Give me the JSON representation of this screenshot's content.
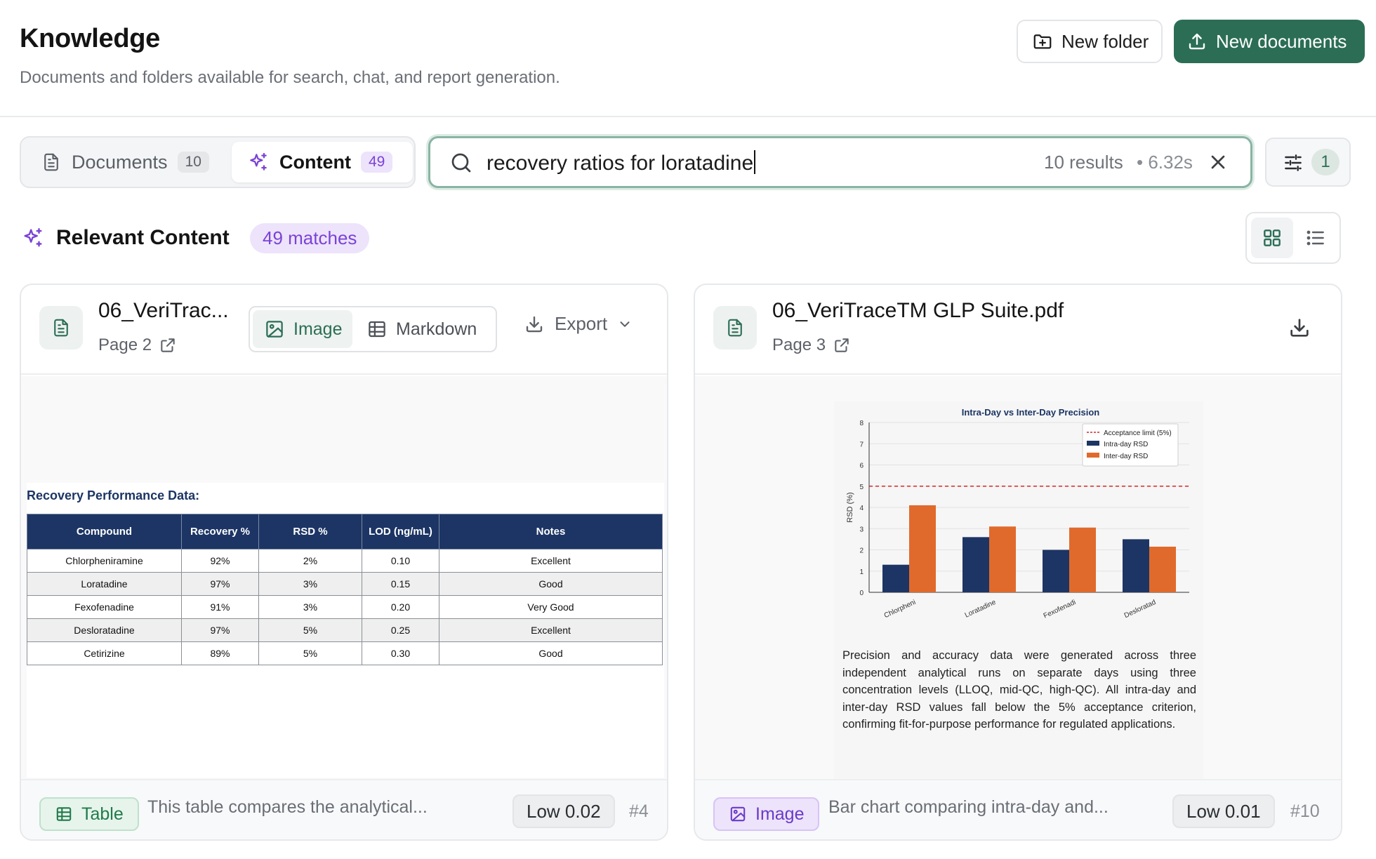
{
  "header": {
    "title": "Knowledge",
    "subtitle": "Documents and folders available for search, chat, and report generation.",
    "new_folder_label": "New folder",
    "new_documents_label": "New documents"
  },
  "tabs": [
    {
      "label": "Documents",
      "count": "10"
    },
    {
      "label": "Content",
      "count": "49"
    }
  ],
  "search": {
    "query": "recovery ratios for loratadine",
    "results": "10 results",
    "elapsed": "• 6.32s"
  },
  "filters": {
    "active_count": "1"
  },
  "relevant": {
    "title": "Relevant Content",
    "matches": "49 matches"
  },
  "colors": {
    "accent": "#2b6e55",
    "purple": "#7a43d6",
    "navy": "#1c3564",
    "orange": "#e06a2c"
  },
  "cards": [
    {
      "title": "06_VeriTrac...",
      "page": "Page 2",
      "mode_image": "Image",
      "mode_markdown": "Markdown",
      "export_label": "Export",
      "content": {
        "heading": "Recovery Performance Data:",
        "columns": [
          "Compound",
          "Recovery %",
          "RSD %",
          "LOD (ng/mL)",
          "Notes"
        ],
        "rows": [
          [
            "Chlorpheniramine",
            "92%",
            "2%",
            "0.10",
            "Excellent"
          ],
          [
            "Loratadine",
            "97%",
            "3%",
            "0.15",
            "Good"
          ],
          [
            "Fexofenadine",
            "91%",
            "3%",
            "0.20",
            "Very Good"
          ],
          [
            "Desloratadine",
            "97%",
            "5%",
            "0.25",
            "Excellent"
          ],
          [
            "Cetirizine",
            "89%",
            "5%",
            "0.30",
            "Good"
          ]
        ]
      },
      "tag": "Table",
      "snippet": "This table compares the analytical...",
      "score": "Low 0.02",
      "rank": "#4"
    },
    {
      "title": "06_VeriTraceTM GLP Suite.pdf",
      "page": "Page 3",
      "description": "Precision and accuracy data were generated across three independent analytical runs on separate days using three concentration levels (LLOQ, mid-QC, high-QC). All intra-day and inter-day RSD values fall below the 5% acceptance criterion, confirming fit-for-purpose performance for regulated applications.",
      "tag": "Image",
      "snippet": "Bar chart comparing intra-day and...",
      "score": "Low 0.01",
      "rank": "#10"
    }
  ],
  "chart_data": {
    "type": "bar",
    "title": "Intra-Day vs Inter-Day Precision",
    "xlabel": "",
    "ylabel": "RSD (%)",
    "categories": [
      "Chlorpheni",
      "Loratadine",
      "Fexofenadi",
      "Desloratad"
    ],
    "series": [
      {
        "name": "Intra-day RSD",
        "color": "#1c3564",
        "values": [
          1.3,
          2.6,
          2.0,
          2.5
        ]
      },
      {
        "name": "Inter-day RSD",
        "color": "#e06a2c",
        "values": [
          4.1,
          3.1,
          3.05,
          2.15
        ]
      }
    ],
    "reference_line": {
      "name": "Acceptance limit (5%)",
      "value": 5,
      "color": "#d62728"
    },
    "yticks": [
      "0",
      "1",
      "2",
      "3",
      "4",
      "5",
      "6",
      "7",
      "8"
    ],
    "ylim": [
      0,
      8
    ],
    "grid": true,
    "legend": "top-right"
  }
}
